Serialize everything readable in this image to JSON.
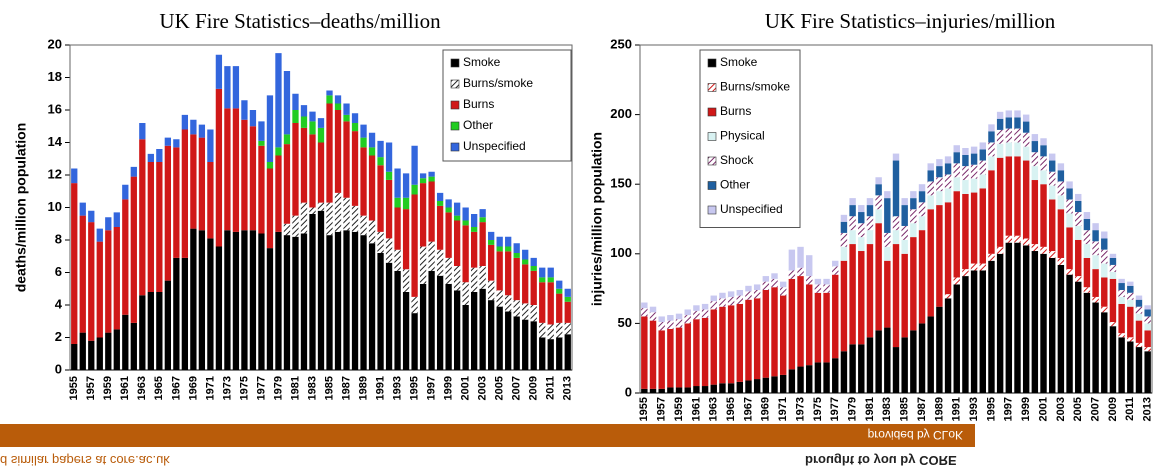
{
  "chart_data": [
    {
      "type": "bar",
      "stacked": true,
      "title": "UK Fire Statistics–deaths/million",
      "y_label": "deaths/million population",
      "categories": [
        "1955",
        null,
        "1957",
        null,
        "1959",
        null,
        "1961",
        null,
        "1963",
        null,
        "1965",
        null,
        "1967",
        null,
        "1969",
        null,
        "1971",
        null,
        "1973",
        null,
        "1975",
        null,
        "1977",
        null,
        "1979",
        null,
        "1981",
        null,
        "1983",
        null,
        "1985",
        null,
        "1987",
        null,
        "1989",
        null,
        "1991",
        null,
        "1993",
        null,
        "1995",
        null,
        "1997",
        null,
        "1999",
        null,
        "2001",
        null,
        "2003",
        null,
        "2005",
        null,
        "2007",
        null,
        "2009",
        null,
        "2011",
        null,
        "2013"
      ],
      "ylim": [
        0,
        20
      ],
      "yticks": [
        0,
        2,
        4,
        6,
        8,
        10,
        12,
        14,
        16,
        18,
        20
      ],
      "legend": "top-right",
      "series": [
        {
          "name": "Smoke",
          "color": "#000000",
          "values": [
            1.6,
            2.3,
            1.8,
            2.0,
            2.3,
            2.5,
            3.4,
            2.9,
            4.6,
            4.8,
            4.8,
            5.5,
            6.9,
            6.9,
            8.7,
            8.6,
            8.1,
            7.6,
            8.6,
            8.5,
            8.6,
            8.6,
            8.4,
            7.5,
            8.5,
            8.3,
            8.2,
            8.4,
            9.6,
            9.8,
            8.3,
            8.5,
            8.6,
            8.5,
            8.3,
            7.8,
            7.2,
            6.6,
            6.1,
            4.8,
            3.5,
            5.3,
            6.1,
            5.8,
            5.3,
            4.9,
            4.0,
            4.8,
            5.0,
            4.3,
            3.9,
            3.6,
            3.3,
            3.1,
            3.0,
            2.0,
            1.9,
            2.0,
            2.2
          ]
        },
        {
          "name": "Burns/smoke",
          "color": "#222222",
          "pattern": "hatch",
          "values": [
            0,
            0,
            0,
            0,
            0,
            0,
            0,
            0,
            0,
            0,
            0,
            0,
            0,
            0,
            0,
            0,
            0,
            0,
            0,
            0,
            0,
            0,
            0,
            0,
            0,
            0.7,
            1.3,
            1.9,
            0.4,
            0.5,
            2.0,
            2.4,
            2.0,
            1.6,
            1.2,
            1.4,
            1.3,
            1.5,
            1.3,
            1.4,
            1.0,
            2.3,
            1.8,
            1.6,
            1.6,
            1.5,
            1.4,
            1.5,
            1.4,
            1.2,
            1.0,
            1.0,
            1.0,
            1.0,
            1.0,
            0.9,
            0.9,
            0.9,
            0.7
          ]
        },
        {
          "name": "Burns",
          "color": "#d01818",
          "values": [
            9.9,
            7.2,
            7.3,
            5.9,
            6.3,
            6.3,
            7.1,
            9.0,
            9.6,
            8.0,
            8.0,
            8.3,
            6.8,
            7.9,
            5.8,
            5.7,
            4.7,
            9.7,
            7.5,
            7.6,
            6.8,
            6.4,
            5.4,
            4.9,
            4.7,
            4.9,
            5.7,
            4.6,
            4.5,
            3.7,
            6.1,
            5.1,
            4.7,
            4.6,
            4.2,
            4.0,
            4.1,
            3.6,
            2.6,
            3.7,
            6.3,
            3.9,
            3.7,
            2.7,
            2.8,
            2.8,
            3.5,
            2.2,
            2.7,
            2.2,
            2.4,
            2.7,
            2.6,
            2.4,
            2.1,
            2.5,
            2.6,
            1.8,
            1.3
          ]
        },
        {
          "name": "Other",
          "color": "#22cc22",
          "values": [
            0,
            0,
            0,
            0,
            0,
            0,
            0,
            0,
            0,
            0,
            0,
            0,
            0,
            0,
            0,
            0,
            0,
            0,
            0,
            0,
            0,
            0,
            0.3,
            0.4,
            0.5,
            0.6,
            0.8,
            0.7,
            0.8,
            0.9,
            0.5,
            0.4,
            0.4,
            0.5,
            0.6,
            0.5,
            0.5,
            0.5,
            0.6,
            0.7,
            0.6,
            0.3,
            0.3,
            0.3,
            0.3,
            0.3,
            0.3,
            0.3,
            0.3,
            0.3,
            0.3,
            0.3,
            0.3,
            0.3,
            0.3,
            0.3,
            0.3,
            0.3,
            0.3
          ]
        },
        {
          "name": "Unspecified",
          "color": "#3366dd",
          "values": [
            0.9,
            0.8,
            0.7,
            0.8,
            0.8,
            0.9,
            0.9,
            0.6,
            1.0,
            0.5,
            0.8,
            0.5,
            0.5,
            0.9,
            0.9,
            0.8,
            2.0,
            2.1,
            2.6,
            2.6,
            1.2,
            1.0,
            1.2,
            4.1,
            5.8,
            3.9,
            1.0,
            0.7,
            0.6,
            0.6,
            0.3,
            0.5,
            0.7,
            0.6,
            0.8,
            0.9,
            1.0,
            1.8,
            1.8,
            1.5,
            2.4,
            0.3,
            0.3,
            0.5,
            0.5,
            0.8,
            0.8,
            0.8,
            0.5,
            0.5,
            0.6,
            0.6,
            0.6,
            0.6,
            0.5,
            0.6,
            0.6,
            0.5,
            0.5
          ]
        }
      ]
    },
    {
      "type": "bar",
      "stacked": true,
      "title": "UK Fire Statistics–injuries/million",
      "y_label": "injuries/million population",
      "categories": [
        "1955",
        null,
        "1957",
        null,
        "1959",
        null,
        "1961",
        null,
        "1963",
        null,
        "1965",
        null,
        "1967",
        null,
        "1969",
        null,
        "1971",
        null,
        "1973",
        null,
        "1975",
        null,
        "1977",
        null,
        "1979",
        null,
        "1981",
        null,
        "1983",
        null,
        "1985",
        null,
        "1987",
        null,
        "1989",
        null,
        "1991",
        null,
        "1993",
        null,
        "1995",
        null,
        "1997",
        null,
        "1999",
        null,
        "2001",
        null,
        "2003",
        null,
        "2005",
        null,
        "2007",
        null,
        "2009",
        null,
        "2011",
        null,
        "2013"
      ],
      "ylim": [
        0,
        250
      ],
      "yticks": [
        0,
        50,
        100,
        150,
        200,
        250
      ],
      "legend": "top-left",
      "series": [
        {
          "name": "Smoke",
          "color": "#000000",
          "values": [
            3,
            3,
            3,
            4,
            4,
            4,
            5,
            5,
            6,
            7,
            7,
            8,
            9,
            10,
            11,
            12,
            13,
            17,
            19,
            20,
            22,
            22,
            25,
            30,
            35,
            35,
            40,
            45,
            47,
            33,
            40,
            45,
            50,
            55,
            62,
            68,
            78,
            84,
            88,
            88,
            95,
            100,
            108,
            108,
            106,
            102,
            100,
            97,
            92,
            85,
            80,
            72,
            65,
            58,
            48,
            40,
            37,
            33,
            30
          ]
        },
        {
          "name": "Burns/smoke",
          "color": "#d01818",
          "pattern": "hatch",
          "values": [
            0,
            0,
            0,
            0,
            0,
            0,
            0,
            0,
            0,
            0,
            0,
            0,
            0,
            0,
            0,
            0,
            0,
            0,
            0,
            0,
            0,
            0,
            0,
            0,
            0,
            0,
            0,
            0,
            0,
            0,
            0,
            0,
            0,
            0,
            0,
            3,
            5,
            5,
            5,
            5,
            5,
            5,
            5,
            5,
            5,
            5,
            5,
            5,
            5,
            4,
            4,
            4,
            4,
            4,
            3,
            3,
            3,
            3,
            3
          ]
        },
        {
          "name": "Burns",
          "color": "#d01818",
          "values": [
            52,
            49,
            42,
            42,
            43,
            46,
            48,
            49,
            54,
            55,
            56,
            56,
            58,
            58,
            63,
            64,
            57,
            65,
            65,
            58,
            50,
            50,
            60,
            65,
            72,
            67,
            67,
            77,
            48,
            74,
            60,
            67,
            67,
            77,
            73,
            66,
            62,
            54,
            51,
            54,
            60,
            64,
            57,
            57,
            56,
            46,
            45,
            37,
            35,
            30,
            26,
            21,
            20,
            21,
            31,
            21,
            22,
            16,
            12
          ]
        },
        {
          "name": "Physical",
          "color": "#d8f2f2",
          "values": [
            0,
            0,
            0,
            0,
            0,
            0,
            0,
            0,
            0,
            0,
            0,
            0,
            0,
            0,
            0,
            0,
            0,
            0,
            0,
            0,
            0,
            0,
            0,
            10,
            10,
            10,
            10,
            10,
            10,
            10,
            10,
            10,
            10,
            10,
            10,
            10,
            10,
            10,
            10,
            10,
            10,
            10,
            10,
            10,
            10,
            10,
            10,
            10,
            10,
            10,
            10,
            10,
            10,
            10,
            5,
            5,
            5,
            5,
            5
          ]
        },
        {
          "name": "Shock",
          "color": "#7a2a6a",
          "pattern": "hatch",
          "values": [
            6,
            6,
            6,
            6,
            6,
            6,
            6,
            6,
            6,
            6,
            6,
            6,
            6,
            6,
            6,
            6,
            6,
            6,
            6,
            6,
            6,
            6,
            6,
            10,
            10,
            10,
            10,
            10,
            10,
            10,
            10,
            10,
            10,
            10,
            10,
            10,
            10,
            10,
            10,
            10,
            10,
            10,
            10,
            10,
            10,
            10,
            10,
            10,
            10,
            10,
            10,
            10,
            10,
            10,
            5,
            5,
            5,
            5,
            5
          ]
        },
        {
          "name": "Other",
          "color": "#1f5f9f",
          "values": [
            0,
            0,
            0,
            0,
            0,
            0,
            0,
            0,
            0,
            0,
            0,
            0,
            0,
            0,
            0,
            0,
            0,
            0,
            0,
            0,
            0,
            0,
            0,
            8,
            8,
            8,
            8,
            8,
            25,
            40,
            15,
            8,
            8,
            8,
            8,
            8,
            8,
            8,
            8,
            8,
            8,
            8,
            8,
            8,
            8,
            8,
            8,
            8,
            8,
            8,
            8,
            8,
            8,
            8,
            5,
            5,
            5,
            5,
            5
          ]
        },
        {
          "name": "Unspecified",
          "color": "#c8c8f0",
          "values": [
            4,
            4,
            4,
            4,
            4,
            4,
            4,
            4,
            4,
            4,
            4,
            4,
            4,
            4,
            4,
            4,
            4,
            15,
            15,
            15,
            4,
            4,
            4,
            5,
            5,
            5,
            5,
            5,
            5,
            5,
            5,
            5,
            5,
            5,
            5,
            5,
            5,
            5,
            5,
            5,
            5,
            5,
            5,
            5,
            5,
            5,
            5,
            5,
            5,
            5,
            5,
            5,
            5,
            5,
            3,
            3,
            3,
            3,
            3
          ]
        }
      ]
    }
  ],
  "banner": {
    "left": "d similar papers at core.ac.uk",
    "provided": "provided by CLoK",
    "brought": "brought to you by  CORE"
  }
}
